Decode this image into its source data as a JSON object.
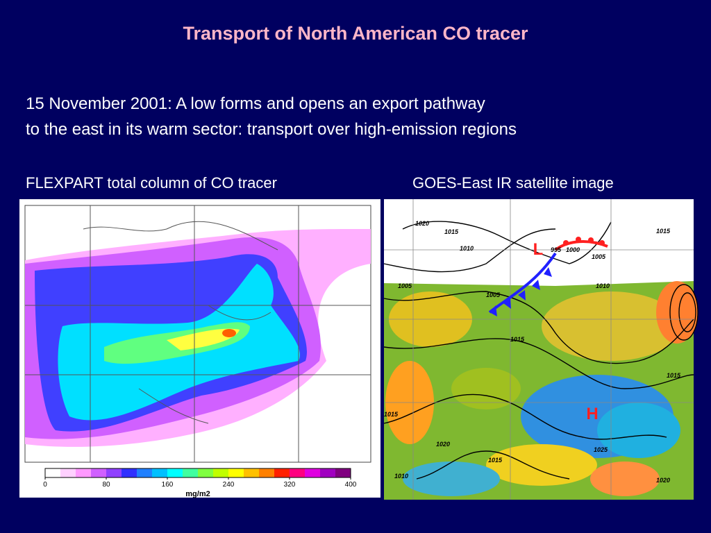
{
  "title": "Transport of North American CO tracer",
  "body": [
    "15 November 2001: A low forms and opens an export pathway",
    "to the east in its warm sector: transport over high-emission regions"
  ],
  "left_panel": {
    "caption": "FLEXPART total column of CO tracer",
    "colorbar": {
      "ticks": [
        0,
        80,
        160,
        240,
        320,
        400
      ],
      "range": [
        0,
        400
      ],
      "unit": "mg/m2",
      "colors": [
        "#ffffff",
        "#ffd0ff",
        "#ff99ff",
        "#d060ff",
        "#9040ff",
        "#3030ff",
        "#2080ff",
        "#00c0ff",
        "#00ffff",
        "#40ffa0",
        "#80ff40",
        "#c0ff00",
        "#ffff00",
        "#ffc000",
        "#ff8000",
        "#ff2000",
        "#ff0080",
        "#e000e0",
        "#a000c0",
        "#800080"
      ]
    }
  },
  "right_panel": {
    "caption": "GOES-East IR satellite image",
    "isobar_labels": [
      "1020",
      "1015",
      "1010",
      "1005",
      "1005",
      "995",
      "1000",
      "1005",
      "1010",
      "1015",
      "1015",
      "1015",
      "1015",
      "1020",
      "1025",
      "1015",
      "1010",
      "1020"
    ],
    "low": "L",
    "high": "H"
  }
}
